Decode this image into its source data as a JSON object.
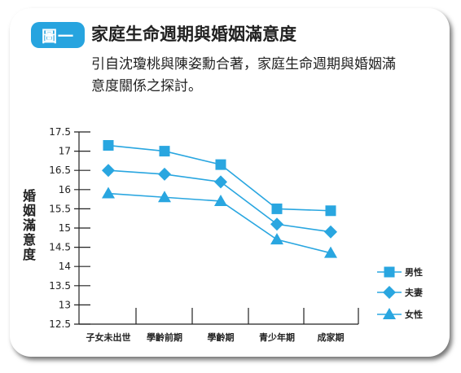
{
  "header": {
    "badge": "圖一",
    "title": "家庭生命週期與婚姻滿意度"
  },
  "description": {
    "line1": "引自沈瓊桃與陳姿勳合著，家庭生命週期與婚姻滿",
    "line2": "意度關係之探討。"
  },
  "chart_data": {
    "type": "line",
    "categories": [
      "子女未出世",
      "學齡前期",
      "學齡期",
      "青少年期",
      "成家期"
    ],
    "ylabel": "婚姻滿意度",
    "xlabel": "",
    "ylim": [
      12.5,
      17.5
    ],
    "yticks": [
      "12.5",
      "13",
      "13.5",
      "14",
      "14.5",
      "15",
      "15.5",
      "16",
      "16.5",
      "17",
      "17.5"
    ],
    "legend_position": "right",
    "series": [
      {
        "name": "男性",
        "marker": "square",
        "color": "#29a6e0",
        "values": [
          17.15,
          17.0,
          16.65,
          15.5,
          15.45
        ]
      },
      {
        "name": "夫妻",
        "marker": "diamond",
        "color": "#29a6e0",
        "values": [
          16.5,
          16.4,
          16.2,
          15.1,
          14.9
        ]
      },
      {
        "name": "女性",
        "marker": "triangle",
        "color": "#29a6e0",
        "values": [
          15.9,
          15.8,
          15.7,
          14.7,
          14.35
        ]
      }
    ]
  }
}
